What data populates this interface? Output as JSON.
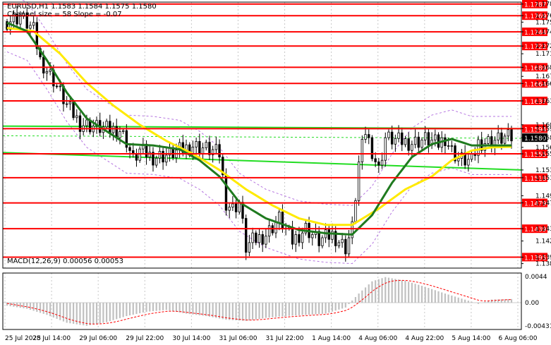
{
  "header": {
    "ohlc_line": "EURUSD,H1  1.1583 1.1584 1.1575 1.1580",
    "channel_line": "Channel size = 58 Slope = -0.07"
  },
  "macd": {
    "label": "MACD(12,26,9) 0.00056 0.00053",
    "scale_top": "0.0044",
    "scale_zero": "0.00",
    "scale_bottom": "-0.00431"
  },
  "chart_data": {
    "type": "candlestick",
    "symbol": "EURUSD",
    "timeframe": "H1",
    "ylim": [
      1.1378,
      1.179
    ],
    "price_scale_labels": [
      "1.1787",
      "1.1769",
      "1.1759",
      "1.1744",
      "1.1722",
      "1.1710",
      "1.1689",
      "1.1675",
      "1.1664",
      "1.1637",
      "1.1600",
      "1.1594",
      "1.1580",
      "1.1565",
      "1.1555",
      "1.1530",
      "1.1518",
      "1.1490",
      "1.1479",
      "1.1439",
      "1.1420",
      "1.1395",
      "1.1385"
    ],
    "horizontal_levels": [
      {
        "value": 1.1787,
        "label": "1.1787"
      },
      {
        "value": 1.1769,
        "label": "1.1769"
      },
      {
        "value": 1.1744,
        "label": "1.1744"
      },
      {
        "value": 1.1722,
        "label": "1.1722"
      },
      {
        "value": 1.1689,
        "label": "1.1689"
      },
      {
        "value": 1.1664,
        "label": "1.1664"
      },
      {
        "value": 1.1637,
        "label": "1.1637"
      },
      {
        "value": 1.1594,
        "label": "1.1594"
      },
      {
        "value": 1.1555,
        "label": "1.1555"
      },
      {
        "value": 1.1518,
        "label": "1.1518"
      },
      {
        "value": 1.1479,
        "label": "1.1479"
      },
      {
        "value": 1.1439,
        "label": "1.1439"
      },
      {
        "value": 1.1395,
        "label": "1.1395"
      }
    ],
    "current_price": "1.1580",
    "x_labels": [
      "25 Jul 2025",
      "28 Jul 14:00",
      "29 Jul 06:00",
      "29 Jul 22:00",
      "30 Jul 14:00",
      "31 Jul 06:00",
      "31 Jul 22:00",
      "1 Aug 14:00",
      "4 Aug 06:00",
      "4 Aug 22:00",
      "5 Aug 14:00",
      "6 Aug 06:00"
    ],
    "price_path": [
      [
        0,
        1.176
      ],
      [
        4,
        1.1768
      ],
      [
        8,
        1.1746
      ],
      [
        10,
        1.17
      ],
      [
        14,
        1.167
      ],
      [
        18,
        1.163
      ],
      [
        22,
        1.1602
      ],
      [
        26,
        1.1598
      ],
      [
        30,
        1.1593
      ],
      [
        34,
        1.1592
      ],
      [
        36,
        1.1575
      ],
      [
        38,
        1.1545
      ],
      [
        40,
        1.156
      ],
      [
        44,
        1.155
      ],
      [
        48,
        1.1553
      ],
      [
        52,
        1.156
      ],
      [
        56,
        1.1568
      ],
      [
        60,
        1.1563
      ],
      [
        64,
        1.1555
      ],
      [
        66,
        1.148
      ],
      [
        68,
        1.147
      ],
      [
        70,
        1.148
      ],
      [
        72,
        1.141
      ],
      [
        74,
        1.142
      ],
      [
        78,
        1.143
      ],
      [
        82,
        1.1455
      ],
      [
        86,
        1.142
      ],
      [
        90,
        1.144
      ],
      [
        94,
        1.142
      ],
      [
        98,
        1.143
      ],
      [
        102,
        1.141
      ],
      [
        104,
        1.144
      ],
      [
        106,
        1.154
      ],
      [
        108,
        1.159
      ],
      [
        110,
        1.156
      ],
      [
        112,
        1.153
      ],
      [
        114,
        1.158
      ],
      [
        118,
        1.1575
      ],
      [
        122,
        1.1572
      ],
      [
        126,
        1.1578
      ],
      [
        130,
        1.157
      ],
      [
        132,
        1.158
      ],
      [
        134,
        1.156
      ],
      [
        136,
        1.1548
      ],
      [
        138,
        1.1545
      ],
      [
        140,
        1.1543
      ],
      [
        142,
        1.1572
      ],
      [
        146,
        1.1575
      ],
      [
        150,
        1.158
      ],
      [
        152,
        1.158
      ]
    ],
    "sma_green_path": [
      [
        0,
        1.1758
      ],
      [
        6,
        1.1745
      ],
      [
        12,
        1.17
      ],
      [
        18,
        1.165
      ],
      [
        24,
        1.161
      ],
      [
        30,
        1.159
      ],
      [
        36,
        1.157
      ],
      [
        44,
        1.1568
      ],
      [
        52,
        1.1562
      ],
      [
        58,
        1.1545
      ],
      [
        64,
        1.152
      ],
      [
        70,
        1.148
      ],
      [
        78,
        1.1455
      ],
      [
        88,
        1.1437
      ],
      [
        96,
        1.1432
      ],
      [
        104,
        1.143
      ],
      [
        110,
        1.146
      ],
      [
        116,
        1.151
      ],
      [
        122,
        1.155
      ],
      [
        128,
        1.157
      ],
      [
        134,
        1.1578
      ],
      [
        140,
        1.1568
      ],
      [
        146,
        1.1568
      ],
      [
        152,
        1.1568
      ]
    ],
    "sma_yellow_path": [
      [
        0,
        1.175
      ],
      [
        8,
        1.1745
      ],
      [
        16,
        1.171
      ],
      [
        24,
        1.1665
      ],
      [
        32,
        1.163
      ],
      [
        40,
        1.16
      ],
      [
        48,
        1.1575
      ],
      [
        56,
        1.1555
      ],
      [
        64,
        1.153
      ],
      [
        72,
        1.15
      ],
      [
        80,
        1.1475
      ],
      [
        88,
        1.1455
      ],
      [
        96,
        1.1445
      ],
      [
        104,
        1.1445
      ],
      [
        112,
        1.147
      ],
      [
        120,
        1.15
      ],
      [
        128,
        1.152
      ],
      [
        134,
        1.1545
      ],
      [
        140,
        1.156
      ],
      [
        146,
        1.1565
      ],
      [
        152,
        1.1566
      ]
    ],
    "macd_hist_profile": [
      [
        0,
        -0.0005
      ],
      [
        6,
        -0.001
      ],
      [
        12,
        -0.002
      ],
      [
        18,
        -0.0033
      ],
      [
        24,
        -0.0038
      ],
      [
        30,
        -0.0032
      ],
      [
        36,
        -0.0022
      ],
      [
        42,
        -0.0015
      ],
      [
        48,
        -0.0012
      ],
      [
        54,
        -0.0018
      ],
      [
        60,
        -0.0022
      ],
      [
        66,
        -0.0028
      ],
      [
        72,
        -0.003
      ],
      [
        78,
        -0.0025
      ],
      [
        84,
        -0.0022
      ],
      [
        90,
        -0.002
      ],
      [
        96,
        -0.0018
      ],
      [
        102,
        -0.0008
      ],
      [
        106,
        0.0015
      ],
      [
        110,
        0.0035
      ],
      [
        114,
        0.0042
      ],
      [
        120,
        0.0036
      ],
      [
        126,
        0.0026
      ],
      [
        132,
        0.0015
      ],
      [
        138,
        0.0005
      ],
      [
        142,
        -0.0002
      ],
      [
        146,
        0.0005
      ],
      [
        152,
        0.0006
      ]
    ],
    "colors": {
      "level_line": "#ff0000",
      "label_bg": "#ff0000",
      "current_label_bg": "#000000",
      "sma_fast": "#1f7a1f",
      "sma_slow": "#ffea00",
      "channel": "#22dd22",
      "envelope": "#b574e0",
      "candle": "#000000",
      "histogram": "#c0c0c0",
      "signal": "#ff0000",
      "grid": "#c8c8c8"
    }
  }
}
